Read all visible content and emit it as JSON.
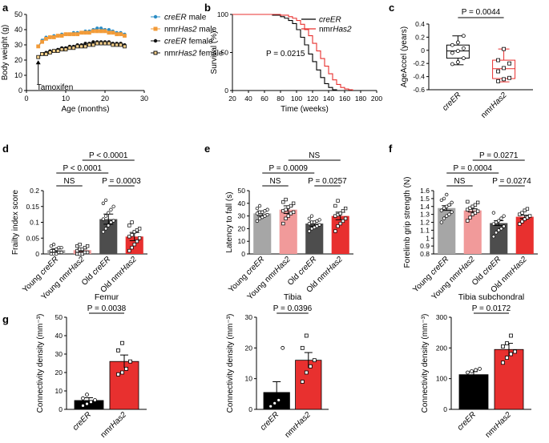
{
  "colors": {
    "creER_male": "#2b8cc4",
    "nmrHas2_male": "#f29b38",
    "female": "#111111",
    "creER_surv": "#000000",
    "nmr_surv": "#e8302f",
    "young_cre": "#a6a6a6",
    "young_nmr": "#f19a9a",
    "old_cre": "#4d4d4d",
    "old_nmr": "#e8302f",
    "bar_black": "#000000",
    "bar_red": "#e8302f"
  },
  "chart_data": [
    {
      "panel": "a",
      "type": "line",
      "xlabel": "Age (months)",
      "ylabel": "Body weight (g)",
      "xlim": [
        0,
        30
      ],
      "ylim": [
        0,
        50
      ],
      "xticks": [
        0,
        10,
        20,
        30
      ],
      "yticks": [
        0,
        10,
        20,
        30,
        40,
        50
      ],
      "annotation": "Tamoxifen",
      "x": [
        3,
        4,
        5,
        6,
        7,
        8,
        9,
        10,
        11,
        12,
        13,
        14,
        15,
        16,
        17,
        18,
        19,
        20,
        21,
        22,
        23,
        24,
        25
      ],
      "series": [
        {
          "name": "creER male",
          "values": [
            29,
            33,
            35,
            35,
            36,
            36,
            37,
            37,
            37,
            38,
            38,
            38,
            39,
            39,
            40,
            41,
            41,
            40,
            40,
            39,
            38,
            38,
            37
          ]
        },
        {
          "name": "nmrHas2 male",
          "values": [
            29,
            32,
            34,
            35,
            35,
            36,
            36,
            37,
            37,
            37,
            37,
            38,
            38,
            38,
            39,
            39,
            39,
            39,
            38,
            38,
            37,
            37,
            36
          ]
        },
        {
          "name": "creER female",
          "values": [
            22,
            24,
            25,
            26,
            26,
            27,
            28,
            28,
            29,
            29,
            30,
            30,
            31,
            31,
            32,
            32,
            32,
            32,
            32,
            31,
            31,
            31,
            30
          ]
        },
        {
          "name": "nmrHas2 female",
          "values": [
            22,
            24,
            24,
            25,
            26,
            26,
            27,
            27,
            28,
            28,
            29,
            29,
            29,
            30,
            30,
            31,
            31,
            31,
            31,
            30,
            30,
            30,
            29
          ]
        }
      ]
    },
    {
      "panel": "b",
      "type": "line",
      "xlabel": "Time (weeks)",
      "ylabel": "Survival (%)",
      "xlim": [
        20,
        200
      ],
      "ylim": [
        0,
        100
      ],
      "xticks": [
        20,
        40,
        60,
        80,
        100,
        120,
        140,
        160,
        180,
        200
      ],
      "yticks": [
        0,
        50,
        100
      ],
      "annotation": "P = 0.0215",
      "series": [
        {
          "name": "creER",
          "x": [
            20,
            60,
            70,
            80,
            85,
            90,
            95,
            100,
            105,
            110,
            115,
            120,
            125,
            130,
            135,
            140,
            145,
            150
          ],
          "values": [
            100,
            100,
            99,
            97,
            95,
            92,
            88,
            80,
            70,
            60,
            48,
            38,
            27,
            17,
            9,
            4,
            1,
            0
          ]
        },
        {
          "name": "nmrHas2",
          "x": [
            20,
            70,
            80,
            90,
            95,
            100,
            105,
            110,
            115,
            120,
            125,
            130,
            135,
            140,
            145,
            150,
            155,
            160,
            165,
            170
          ],
          "values": [
            100,
            100,
            99,
            97,
            95,
            92,
            87,
            80,
            72,
            62,
            52,
            42,
            32,
            22,
            14,
            8,
            4,
            2,
            1,
            0
          ]
        }
      ]
    },
    {
      "panel": "c",
      "type": "box",
      "ylabel": "AgeAccel (years)",
      "ylim": [
        -0.6,
        0.4
      ],
      "yticks": [
        -0.6,
        -0.4,
        -0.2,
        0,
        0.2,
        0.4
      ],
      "categories": [
        "creER",
        "nmrHas2"
      ],
      "annotation": "P = 0.0044",
      "boxes": [
        {
          "min": -0.22,
          "q1": -0.12,
          "median": -0.01,
          "q3": 0.08,
          "max": 0.22,
          "points": [
            -0.21,
            -0.18,
            -0.12,
            -0.04,
            -0.01,
            0.03,
            0.08,
            0.12,
            0.22
          ]
        },
        {
          "min": -0.48,
          "q1": -0.43,
          "median": -0.28,
          "q3": -0.15,
          "max": 0.02,
          "points": [
            -0.47,
            -0.44,
            -0.42,
            -0.32,
            -0.27,
            -0.2,
            -0.15,
            0.02
          ]
        }
      ]
    },
    {
      "panel": "d",
      "type": "bar",
      "ylabel": "Frailty index score",
      "ylim": [
        0,
        0.2
      ],
      "yticks": [
        0,
        0.05,
        0.1,
        0.15,
        0.2
      ],
      "categories": [
        "Young creER",
        "Young nmrHas2",
        "Old creER",
        "Old nmrHas2"
      ],
      "values": [
        0.012,
        0.012,
        0.11,
        0.055
      ],
      "errors": [
        0.004,
        0.004,
        0.016,
        0.013
      ],
      "points": [
        [
          0,
          0,
          0,
          0.005,
          0.005,
          0.01,
          0.01,
          0.015,
          0.02,
          0.02,
          0.025,
          0.03
        ],
        [
          0,
          0,
          0,
          0.005,
          0.005,
          0.01,
          0.015,
          0.015,
          0.02,
          0.025,
          0.025,
          0.03
        ],
        [
          0.07,
          0.08,
          0.09,
          0.1,
          0.105,
          0.11,
          0.12,
          0.13,
          0.14,
          0.15,
          0.16,
          0.17
        ],
        [
          0.01,
          0.02,
          0.03,
          0.04,
          0.05,
          0.055,
          0.06,
          0.07,
          0.075,
          0.08,
          0.09,
          0.1
        ]
      ],
      "comparisons": [
        {
          "label": "NS",
          "from": 0,
          "to": 1,
          "level": 0
        },
        {
          "label": "P = 0.0003",
          "from": 2,
          "to": 3,
          "level": 0
        },
        {
          "label": "P < 0.0001",
          "from": 0,
          "to": 2,
          "level": 1
        },
        {
          "label": "P < 0.0001",
          "from": 1,
          "to": 3,
          "level": 2
        }
      ]
    },
    {
      "panel": "e",
      "type": "bar",
      "ylabel": "Latency to fall (s)",
      "ylim": [
        0,
        50
      ],
      "yticks": [
        0,
        10,
        20,
        30,
        40,
        50
      ],
      "categories": [
        "Young creER",
        "Young nmrHas2",
        "Old creER",
        "Old nmrHas2"
      ],
      "values": [
        32,
        35,
        24,
        30
      ],
      "errors": [
        2,
        3,
        2,
        3
      ],
      "points": [
        [
          26,
          28,
          29,
          30,
          31,
          32,
          33,
          33,
          34,
          35,
          36,
          38
        ],
        [
          24,
          28,
          30,
          32,
          33,
          34,
          35,
          37,
          38,
          40,
          41,
          43
        ],
        [
          18,
          20,
          21,
          22,
          23,
          24,
          25,
          25,
          26,
          27,
          28,
          30
        ],
        [
          18,
          22,
          24,
          26,
          28,
          30,
          31,
          32,
          34,
          36,
          38,
          42
        ]
      ],
      "comparisons": [
        {
          "label": "NS",
          "from": 0,
          "to": 1,
          "level": 0
        },
        {
          "label": "P = 0.0257",
          "from": 2,
          "to": 3,
          "level": 0
        },
        {
          "label": "P = 0.0009",
          "from": 0,
          "to": 2,
          "level": 1
        },
        {
          "label": "NS",
          "from": 1,
          "to": 3,
          "level": 2
        }
      ]
    },
    {
      "panel": "f",
      "type": "bar",
      "ylabel": "Forelimb grip strength (N)",
      "ylim": [
        0.8,
        1.6
      ],
      "yticks": [
        0.8,
        0.9,
        1.0,
        1.1,
        1.2,
        1.3,
        1.4,
        1.5,
        1.6
      ],
      "categories": [
        "Young creER",
        "Young nmrHas2",
        "Old creER",
        "Old nmrHas2"
      ],
      "values": [
        1.38,
        1.35,
        1.19,
        1.27
      ],
      "errors": [
        0.03,
        0.02,
        0.03,
        0.02
      ],
      "points": [
        [
          1.2,
          1.25,
          1.28,
          1.3,
          1.33,
          1.35,
          1.38,
          1.4,
          1.42,
          1.45,
          1.48,
          1.5,
          1.55
        ],
        [
          1.22,
          1.26,
          1.3,
          1.32,
          1.34,
          1.36,
          1.38,
          1.4,
          1.42,
          1.45,
          1.46
        ],
        [
          1.02,
          1.07,
          1.1,
          1.12,
          1.15,
          1.18,
          1.2,
          1.22,
          1.25,
          1.28,
          1.32
        ],
        [
          1.18,
          1.21,
          1.24,
          1.26,
          1.28,
          1.3,
          1.32,
          1.35,
          1.37
        ]
      ],
      "comparisons": [
        {
          "label": "NS",
          "from": 0,
          "to": 1,
          "level": 0
        },
        {
          "label": "P = 0.0274",
          "from": 2,
          "to": 3,
          "level": 0
        },
        {
          "label": "P = 0.0004",
          "from": 0,
          "to": 2,
          "level": 1
        },
        {
          "label": "P = 0.0271",
          "from": 1,
          "to": 3,
          "level": 2
        }
      ]
    },
    {
      "panel": "g1",
      "type": "bar",
      "title": "Femur",
      "ylabel": "Connectivity density (mm⁻³)",
      "ylim": [
        0,
        50
      ],
      "yticks": [
        0,
        10,
        20,
        30,
        40,
        50
      ],
      "categories": [
        "creER",
        "nmrHas2"
      ],
      "values": [
        4.8,
        26
      ],
      "errors": [
        1.5,
        3.5
      ],
      "points": [
        [
          2,
          3,
          4,
          5,
          6,
          8
        ],
        [
          19,
          20,
          22,
          26,
          32,
          36
        ]
      ],
      "annotation": "P = 0.0038"
    },
    {
      "panel": "g2",
      "type": "bar",
      "title": "Tibia",
      "ylabel": "Connectivity density (mm⁻³)",
      "ylim": [
        0,
        30
      ],
      "yticks": [
        0,
        10,
        20,
        30
      ],
      "categories": [
        "creER",
        "nmrHas2"
      ],
      "values": [
        5.5,
        16
      ],
      "errors": [
        3.5,
        2.5
      ],
      "points": [
        [
          1,
          2,
          3,
          20
        ],
        [
          9,
          12,
          14,
          16,
          20,
          24
        ]
      ],
      "annotation": "P = 0.0396"
    },
    {
      "panel": "g3",
      "type": "bar",
      "title": "Tibia subchondral",
      "ylabel": "Connectivity density (mm⁻³)",
      "ylim": [
        0,
        300
      ],
      "yticks": [
        0,
        100,
        200,
        300
      ],
      "categories": [
        "creER",
        "nmrHas2"
      ],
      "values": [
        113,
        195
      ],
      "errors": [
        10,
        20
      ],
      "points": [
        [
          120,
          124,
          128,
          132
        ],
        [
          152,
          168,
          180,
          188,
          205,
          215,
          240
        ]
      ],
      "annotation": "P = 0.0172"
    }
  ],
  "panel_letters": [
    "a",
    "b",
    "c",
    "d",
    "e",
    "f",
    "g"
  ]
}
